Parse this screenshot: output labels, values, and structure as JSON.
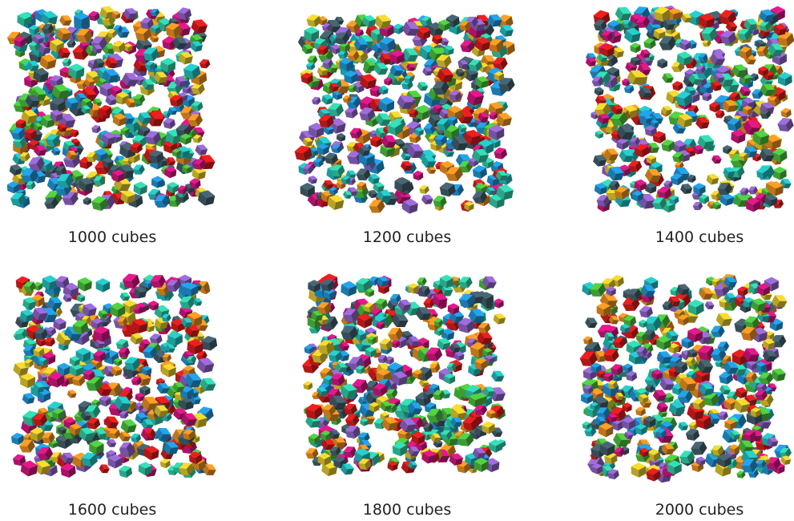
{
  "panels": [
    {
      "caption": "1000 cubes"
    },
    {
      "caption": "1200 cubes"
    },
    {
      "caption": "1400 cubes"
    },
    {
      "caption": "1600 cubes"
    },
    {
      "caption": "1800 cubes"
    },
    {
      "caption": "2000 cubes"
    }
  ]
}
